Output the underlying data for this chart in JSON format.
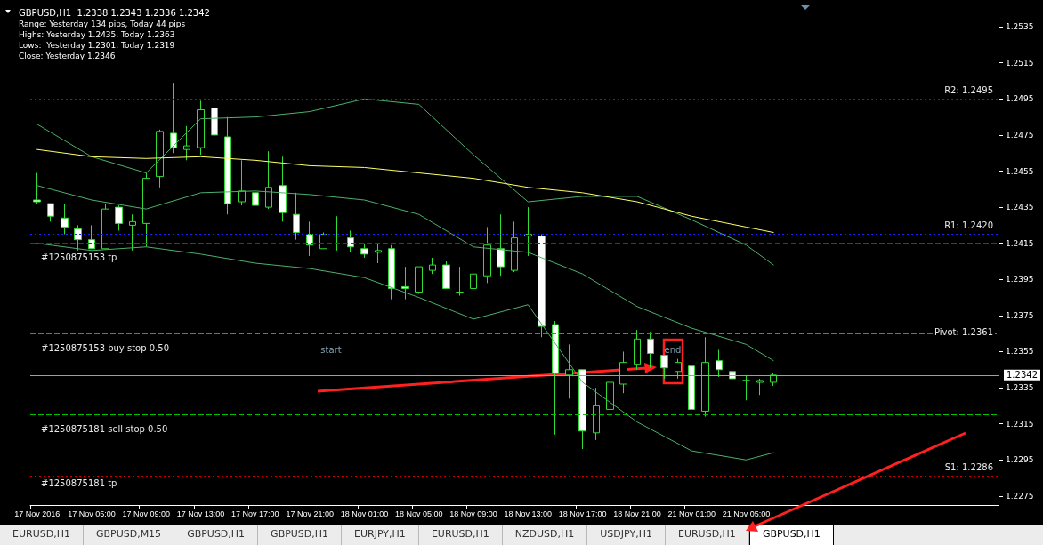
{
  "chart_data": {
    "type": "candlestick",
    "title": "GBPUSD,H1  1.2338 1.2343 1.2336 1.2342",
    "subtitle": "Range: Yesterday 134 pips, Today 44 pips\nHighs: Yesterday 1.2435, Today 1.2363\nLows:  Yesterday 1.2301, Today 1.2319\nClose: Yesterday 1.2346",
    "categories": [
      "17 Nov 2016",
      null,
      null,
      null,
      "17 Nov 05:00",
      null,
      null,
      null,
      "17 Nov 09:00",
      null,
      null,
      null,
      "17 Nov 13:00",
      null,
      null,
      null,
      "17 Nov 17:00",
      null,
      null,
      null,
      "17 Nov 21:00",
      null,
      null,
      null,
      "18 Nov 01:00",
      null,
      null,
      null,
      "18 Nov 05:00",
      null,
      null,
      null,
      "18 Nov 09:00",
      null,
      null,
      null,
      "18 Nov 13:00",
      null,
      null,
      null,
      "18 Nov 17:00",
      null,
      null,
      null,
      "18 Nov 21:00",
      null,
      null,
      null,
      "21 Nov 01:00",
      null,
      null,
      null,
      "21 Nov 05:00",
      null,
      null,
      null,
      null,
      null,
      null,
      null,
      null,
      null,
      null,
      null,
      null,
      null,
      null,
      null,
      null,
      null,
      null
    ],
    "color": "#33dd33",
    "ohlc": [
      [
        1.2439,
        1.2454,
        1.2437,
        1.2438
      ],
      [
        1.2437,
        1.2437,
        1.2427,
        1.243
      ],
      [
        1.2429,
        1.2437,
        1.242,
        1.2424
      ],
      [
        1.2423,
        1.2425,
        1.2411,
        1.2417
      ],
      [
        1.2417,
        1.2425,
        1.2412,
        1.2412
      ],
      [
        1.2412,
        1.2437,
        1.2412,
        1.2434
      ],
      [
        1.2435,
        1.2436,
        1.2422,
        1.2426
      ],
      [
        1.2425,
        1.2431,
        1.2411,
        1.2427
      ],
      [
        1.2426,
        1.2454,
        1.2413,
        1.2451
      ],
      [
        1.2452,
        1.2478,
        1.2446,
        1.2477
      ],
      [
        1.2476,
        1.2504,
        1.2465,
        1.2468
      ],
      [
        1.2467,
        1.248,
        1.2461,
        1.2469
      ],
      [
        1.2468,
        1.2494,
        1.2464,
        1.2489
      ],
      [
        1.249,
        1.2494,
        1.2463,
        1.2475
      ],
      [
        1.2474,
        1.2485,
        1.2431,
        1.2437
      ],
      [
        1.2438,
        1.2461,
        1.2436,
        1.2444
      ],
      [
        1.2443,
        1.2458,
        1.2423,
        1.2436
      ],
      [
        1.2435,
        1.2466,
        1.2434,
        1.2446
      ],
      [
        1.2447,
        1.2463,
        1.2427,
        1.2432
      ],
      [
        1.2431,
        1.2443,
        1.2417,
        1.2421
      ],
      [
        1.242,
        1.2427,
        1.2408,
        1.2414
      ],
      [
        1.2412,
        1.2421,
        1.2412,
        1.242
      ],
      [
        1.2419,
        1.243,
        1.2411,
        1.2419
      ],
      [
        1.2418,
        1.2422,
        1.241,
        1.2413
      ],
      [
        1.2412,
        1.2415,
        1.2407,
        1.2409
      ],
      [
        1.241,
        1.2415,
        1.2404,
        1.2411
      ],
      [
        1.2412,
        1.2414,
        1.2384,
        1.239
      ],
      [
        1.2391,
        1.2402,
        1.2384,
        1.239
      ],
      [
        1.2388,
        1.2402,
        1.2387,
        1.2402
      ],
      [
        1.24,
        1.2407,
        1.2398,
        1.2403
      ],
      [
        1.2403,
        1.2405,
        1.239,
        1.239
      ],
      [
        1.2388,
        1.2402,
        1.2386,
        1.2388
      ],
      [
        1.239,
        1.2398,
        1.2382,
        1.2398
      ],
      [
        1.2397,
        1.2424,
        1.2393,
        1.2414
      ],
      [
        1.2412,
        1.2431,
        1.2397,
        1.2402
      ],
      [
        1.24,
        1.2427,
        1.2399,
        1.2418
      ],
      [
        1.2419,
        1.2435,
        1.2408,
        1.242
      ],
      [
        1.2419,
        1.242,
        1.2363,
        1.2369
      ],
      [
        1.237,
        1.2372,
        1.2309,
        1.2343
      ],
      [
        1.2342,
        1.2359,
        1.2329,
        1.2345
      ],
      [
        1.2345,
        1.2345,
        1.2301,
        1.2311
      ],
      [
        1.231,
        1.2335,
        1.2306,
        1.2325
      ],
      [
        1.2323,
        1.234,
        1.2321,
        1.2338
      ],
      [
        1.2337,
        1.2355,
        1.2332,
        1.2349
      ],
      [
        1.2348,
        1.2367,
        1.2345,
        1.2362
      ],
      [
        1.2362,
        1.2366,
        1.2346,
        1.2354
      ],
      [
        1.2353,
        1.2353,
        1.234,
        1.2346
      ],
      [
        1.2344,
        1.2351,
        1.234,
        1.2349
      ],
      [
        1.2347,
        1.2347,
        1.2319,
        1.2323
      ],
      [
        1.2322,
        1.2363,
        1.2319,
        1.2349
      ],
      [
        1.235,
        1.2356,
        1.2341,
        1.2345
      ],
      [
        1.2344,
        1.2348,
        1.2339,
        1.234
      ],
      [
        1.2339,
        1.2342,
        1.2328,
        1.2339
      ],
      [
        1.2338,
        1.234,
        1.2331,
        1.2339
      ],
      [
        1.2338,
        1.2343,
        1.2336,
        1.2342
      ],
      null,
      null,
      null,
      null,
      null,
      null,
      null,
      null,
      null,
      null,
      null,
      null,
      null,
      null,
      null,
      null
    ],
    "series": [
      {
        "type": "line",
        "color": "#4caf6a",
        "values": [
          1.2481,
          null,
          null,
          null,
          1.2463,
          null,
          null,
          null,
          1.2454,
          null,
          null,
          null,
          1.2484,
          null,
          null,
          null,
          1.2485,
          null,
          null,
          null,
          1.2488,
          null,
          null,
          null,
          1.2495,
          null,
          null,
          null,
          1.2492,
          null,
          null,
          null,
          1.2464,
          null,
          null,
          null,
          1.2438,
          null,
          null,
          null,
          1.2441,
          null,
          null,
          null,
          1.2441,
          null,
          null,
          null,
          1.2428,
          null,
          null,
          null,
          1.2414,
          null,
          1.2403,
          null,
          null,
          null,
          null,
          null,
          null,
          null,
          null,
          null,
          null,
          null,
          null,
          null,
          null,
          null,
          null
        ]
      },
      {
        "type": "line",
        "color": "#4caf6a",
        "values": [
          1.2447,
          null,
          null,
          null,
          1.2439,
          null,
          null,
          null,
          1.2434,
          null,
          null,
          null,
          1.2443,
          null,
          null,
          null,
          1.2444,
          null,
          null,
          null,
          1.2442,
          null,
          null,
          null,
          1.2439,
          null,
          null,
          null,
          1.2431,
          null,
          null,
          null,
          1.2413,
          null,
          null,
          null,
          1.241,
          null,
          null,
          null,
          1.2398,
          null,
          null,
          null,
          1.238,
          null,
          null,
          null,
          1.2368,
          null,
          null,
          null,
          1.2359,
          null,
          1.235,
          null,
          null,
          null,
          null,
          null,
          null,
          null,
          null,
          null,
          null,
          null,
          null,
          null,
          null,
          null,
          null
        ]
      },
      {
        "type": "line",
        "color": "#4caf6a",
        "values": [
          1.2415,
          null,
          null,
          null,
          1.2411,
          null,
          null,
          null,
          1.2413,
          null,
          null,
          null,
          1.2409,
          null,
          null,
          null,
          1.2404,
          null,
          null,
          null,
          1.2401,
          null,
          null,
          null,
          1.2396,
          null,
          null,
          null,
          1.2385,
          null,
          null,
          null,
          1.2373,
          null,
          null,
          null,
          1.2381,
          null,
          null,
          null,
          1.2338,
          null,
          null,
          null,
          1.2316,
          null,
          null,
          null,
          1.23,
          null,
          null,
          null,
          1.2295,
          null,
          1.2299,
          null,
          null,
          null,
          null,
          null,
          null,
          null,
          null,
          null,
          null,
          null,
          null,
          null,
          null,
          null,
          null
        ]
      },
      {
        "type": "line",
        "color": "#ffff66",
        "values": [
          1.2467,
          null,
          null,
          null,
          1.2463,
          null,
          null,
          null,
          1.2462,
          null,
          null,
          null,
          1.2463,
          null,
          null,
          null,
          1.2461,
          null,
          null,
          null,
          1.2458,
          null,
          null,
          null,
          1.2457,
          null,
          null,
          null,
          1.2454,
          null,
          null,
          null,
          1.2451,
          null,
          null,
          null,
          1.2446,
          null,
          null,
          null,
          1.2443,
          null,
          null,
          null,
          1.2438,
          null,
          null,
          null,
          1.243,
          null,
          null,
          null,
          1.2424,
          null,
          1.2421,
          null,
          null,
          null,
          null,
          null,
          null,
          null,
          null,
          null,
          null,
          null,
          null,
          null,
          null,
          null,
          null
        ]
      }
    ],
    "ylim": [
      1.227,
      1.254
    ],
    "yticks": [
      1.2275,
      1.2295,
      1.2315,
      1.2335,
      1.2355,
      1.2375,
      1.2395,
      1.2415,
      1.2435,
      1.2455,
      1.2475,
      1.2495,
      1.2515,
      1.2535
    ],
    "ref_lines": [
      {
        "axis": "y",
        "value": 1.2495,
        "label": "R2: 1.2495",
        "color": "#2020ff",
        "line_style": "dotted"
      },
      {
        "axis": "y",
        "value": 1.242,
        "label": "R1: 1.2420",
        "color": "#2020ff",
        "line_style": "dotted"
      },
      {
        "axis": "y",
        "value": 1.2415,
        "label": "#1250875153 tp",
        "color": "#cc0000",
        "line_style": "dashed"
      },
      {
        "axis": "y",
        "value": 1.2365,
        "label": "#1250875153 buy stop 0.50",
        "color": "#00c000",
        "line_style": "dashed"
      },
      {
        "axis": "y",
        "value": 1.2361,
        "label": "Pivot: 1.2361",
        "color": "#cc00cc",
        "line_style": "dotted"
      },
      {
        "axis": "y",
        "value": 1.2342,
        "label": "1.2342",
        "color": "#a0a0a0",
        "line_style": "solid"
      },
      {
        "axis": "y",
        "value": 1.232,
        "label": "#1250875181 sell stop 0.50",
        "color": "#00c000",
        "line_style": "dashed"
      },
      {
        "axis": "y",
        "value": 1.229,
        "label": "#1250875181 tp",
        "color": "#cc0000",
        "line_style": "dashed"
      },
      {
        "axis": "y",
        "value": 1.2286,
        "label": "S1: 1.2286",
        "color": "#cc0000",
        "line_style": "dotted"
      }
    ],
    "annotations": [
      "start",
      "end",
      "EURUSD,H1",
      "GBPUSD,M15",
      "GBPUSD,H1",
      "GBPUSD,H1",
      "EURJPY,H1",
      "EURUSD,H1",
      "NZDUSD,H1",
      "USDJPY,H1",
      "EURUSD,H1",
      "GBPUSD,H1"
    ]
  }
}
